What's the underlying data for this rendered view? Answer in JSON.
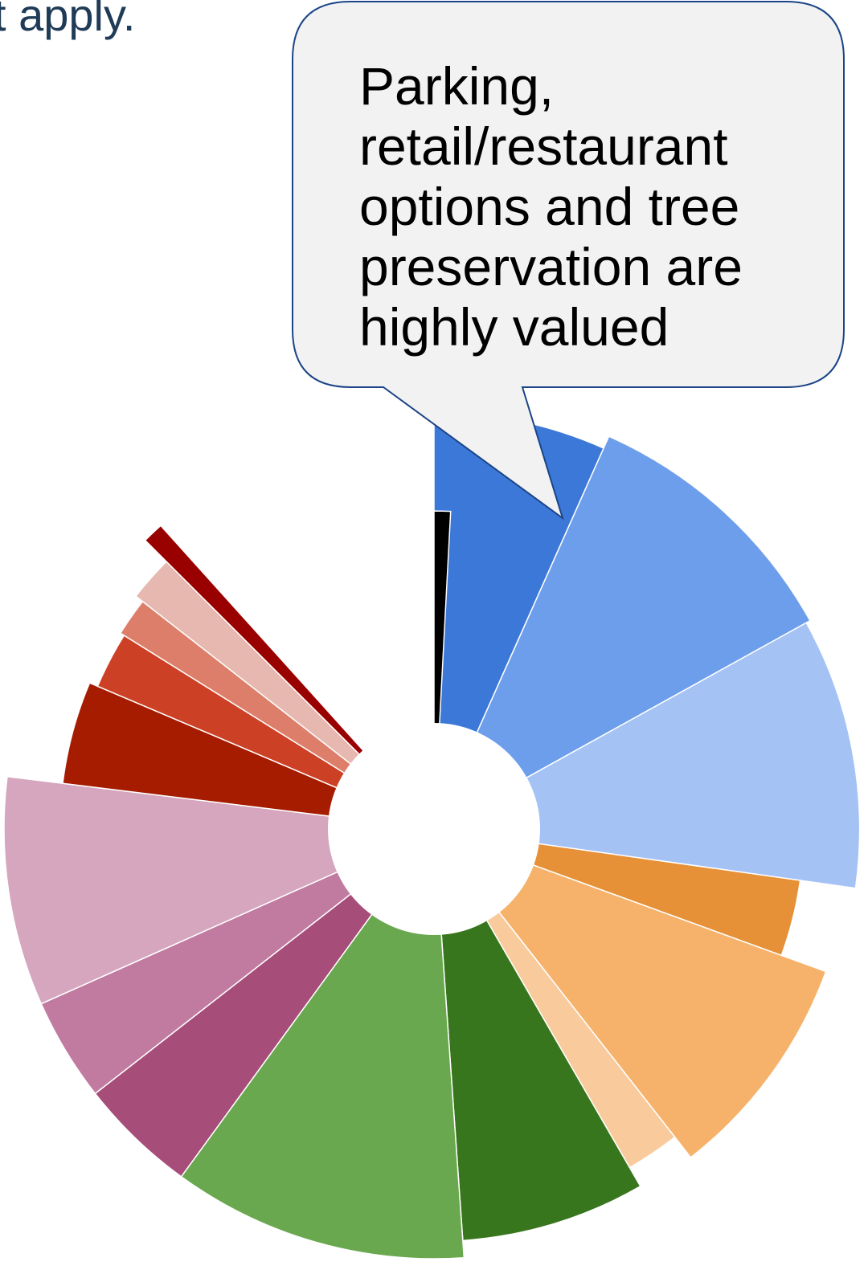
{
  "header_fragment": "t apply.",
  "callout": {
    "text": "Parking, retail/restaurant options and tree preservation are highly valued"
  },
  "chart_data": {
    "type": "pie",
    "variant": "polar-area / rose with center hole",
    "title": "",
    "legend": "none",
    "slices": [
      {
        "value_deg": 24,
        "relative_radius": 0.97,
        "color": "#3c78d8"
      },
      {
        "value_deg": 37,
        "relative_radius": 1.0,
        "color": "#6d9eeb"
      },
      {
        "value_deg": 37,
        "relative_radius": 0.99,
        "color": "#a4c2f4"
      },
      {
        "value_deg": 12,
        "relative_radius": 0.86,
        "color": "#e69138"
      },
      {
        "value_deg": 32,
        "relative_radius": 0.97,
        "color": "#f6b26b"
      },
      {
        "value_deg": 8,
        "relative_radius": 0.91,
        "color": "#f9cb9c"
      },
      {
        "value_deg": 26,
        "relative_radius": 0.96,
        "color": "#38761d"
      },
      {
        "value_deg": 40,
        "relative_radius": 1.0,
        "color": "#6aa84f"
      },
      {
        "value_deg": 16,
        "relative_radius": 1.0,
        "color": "#a64d79"
      },
      {
        "value_deg": 14,
        "relative_radius": 1.0,
        "color": "#c27ba0"
      },
      {
        "value_deg": 31,
        "relative_radius": 1.0,
        "color": "#d5a6bd"
      },
      {
        "value_deg": 16,
        "relative_radius": 0.87,
        "color": "#a61c00"
      },
      {
        "value_deg": 9,
        "relative_radius": 0.85,
        "color": "#cc4125"
      },
      {
        "value_deg": 6,
        "relative_radius": 0.86,
        "color": "#dd7e6b"
      },
      {
        "value_deg": 7,
        "relative_radius": 0.88,
        "color": "#e6b8af"
      },
      {
        "value_deg": 3,
        "relative_radius": 0.95,
        "color": "#990000"
      },
      {
        "value_deg": 42,
        "relative_radius": 0.0,
        "color": "#ffffff"
      },
      {
        "value_deg": 3,
        "relative_radius": 0.74,
        "color": "#000000"
      }
    ]
  }
}
